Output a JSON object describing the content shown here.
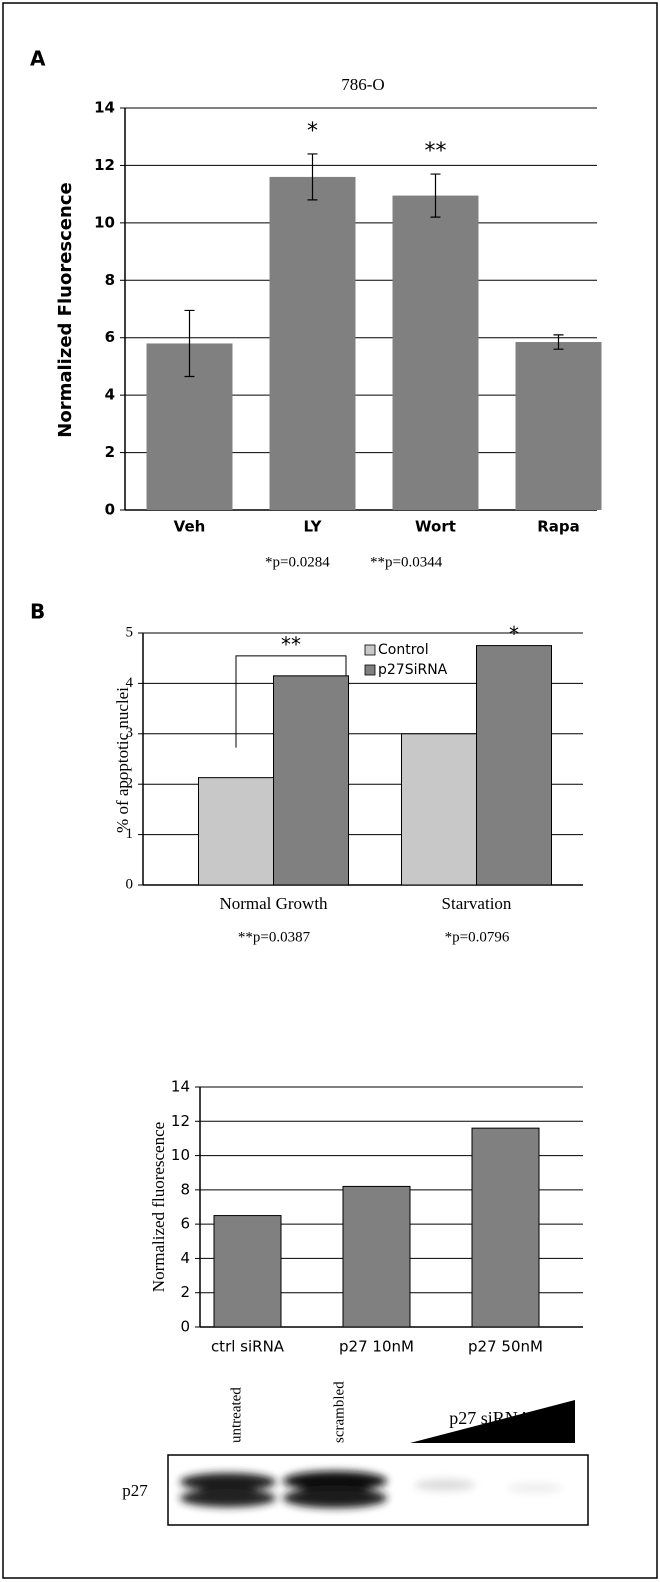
{
  "panels": [
    "A",
    "B"
  ],
  "chart_data": [
    {
      "type": "bar",
      "title": "786-O",
      "y_label": "Normalized Fluorescence",
      "categories": [
        "Veh",
        "LY",
        "Wort",
        "Rapa"
      ],
      "values": [
        5.8,
        11.6,
        10.95,
        5.85
      ],
      "errors": [
        1.15,
        0.8,
        0.75,
        0.25
      ],
      "color": "#808080",
      "ylim": [
        0,
        14
      ],
      "yticks": [
        0,
        2,
        4,
        6,
        8,
        10,
        12,
        14
      ],
      "grid": true,
      "annotations": [
        null,
        "*",
        "**",
        null
      ],
      "notes": [
        "*p=0.0284",
        "**p=0.0344"
      ]
    },
    {
      "type": "bar",
      "y_label": "% of apoptotic nuclei",
      "categories": [
        "Normal Growth",
        "Starvation"
      ],
      "series": [
        {
          "name": "Control",
          "color": "#c8c8c8",
          "values": [
            2.13,
            3.0
          ]
        },
        {
          "name": "p27SiRNA",
          "color": "#808080",
          "values": [
            4.15,
            4.75
          ]
        }
      ],
      "ylim": [
        0,
        5
      ],
      "yticks": [
        0,
        1,
        2,
        3,
        4,
        5
      ],
      "grid": true,
      "legend": "top",
      "annotations": [
        "**",
        "*"
      ],
      "notes": [
        "**p=0.0387",
        "*p=0.0796"
      ]
    },
    {
      "type": "bar",
      "y_label": "Normalized fluorescence",
      "categories": [
        "ctrl siRNA",
        "p27 10nM",
        "p27 50nM"
      ],
      "values": [
        6.5,
        8.2,
        11.6
      ],
      "color": "#808080",
      "ylim": [
        0,
        14
      ],
      "yticks": [
        0,
        2,
        4,
        6,
        8,
        10,
        12,
        14
      ],
      "grid": true
    }
  ],
  "blot": {
    "lanes": [
      "untreated",
      "scrambled"
    ],
    "gradient_label": "p27 siRNA",
    "row_label": "p27"
  }
}
